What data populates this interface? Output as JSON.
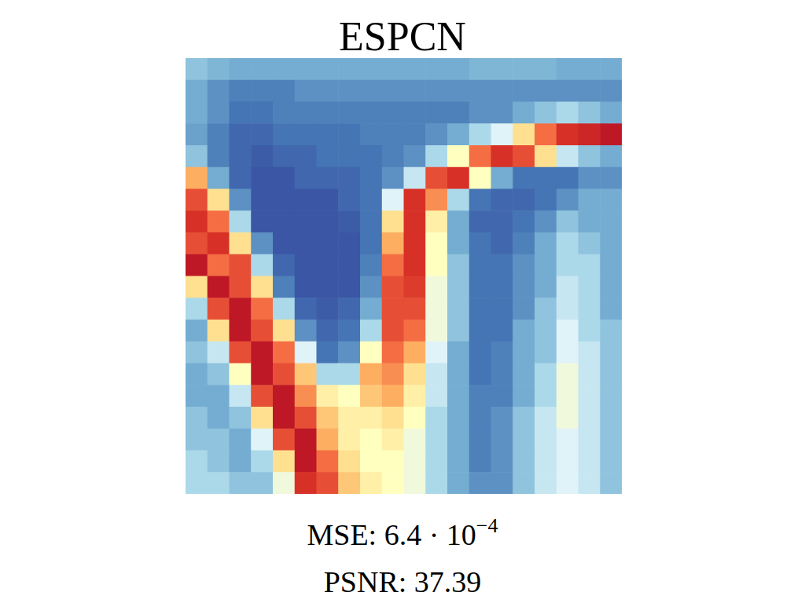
{
  "chart_data": {
    "type": "heatmap",
    "title": "ESPCN",
    "tick_labels": false,
    "grid": false,
    "color_range": [
      0,
      1
    ],
    "annotations": [
      {
        "text": "MSE: 6.4 · 10",
        "superscript": "−4"
      },
      {
        "text": "PSNR: 37.39"
      }
    ],
    "cells": [
      [
        0.25,
        0.22,
        0.2,
        0.2,
        0.2,
        0.2,
        0.2,
        0.2,
        0.2,
        0.2,
        0.2,
        0.2,
        0.2,
        0.22,
        0.22,
        0.22,
        0.22,
        0.2,
        0.2,
        0.2
      ],
      [
        0.2,
        0.15,
        0.12,
        0.12,
        0.12,
        0.15,
        0.15,
        0.15,
        0.15,
        0.15,
        0.15,
        0.15,
        0.15,
        0.15,
        0.15,
        0.15,
        0.15,
        0.15,
        0.15,
        0.15
      ],
      [
        0.2,
        0.15,
        0.1,
        0.1,
        0.12,
        0.12,
        0.12,
        0.12,
        0.12,
        0.12,
        0.12,
        0.12,
        0.12,
        0.15,
        0.15,
        0.2,
        0.25,
        0.3,
        0.25,
        0.2
      ],
      [
        0.18,
        0.12,
        0.08,
        0.08,
        0.1,
        0.1,
        0.1,
        0.1,
        0.12,
        0.12,
        0.12,
        0.15,
        0.2,
        0.3,
        0.4,
        0.6,
        0.8,
        0.9,
        0.92,
        0.95
      ],
      [
        0.25,
        0.12,
        0.08,
        0.06,
        0.08,
        0.08,
        0.1,
        0.1,
        0.1,
        0.12,
        0.15,
        0.3,
        0.5,
        0.8,
        0.9,
        0.85,
        0.6,
        0.35,
        0.25,
        0.2
      ],
      [
        0.7,
        0.2,
        0.08,
        0.05,
        0.05,
        0.08,
        0.08,
        0.08,
        0.1,
        0.15,
        0.35,
        0.85,
        0.9,
        0.5,
        0.2,
        0.1,
        0.1,
        0.1,
        0.15,
        0.15
      ],
      [
        0.85,
        0.6,
        0.15,
        0.05,
        0.05,
        0.05,
        0.05,
        0.08,
        0.1,
        0.4,
        0.9,
        0.75,
        0.3,
        0.1,
        0.08,
        0.08,
        0.1,
        0.15,
        0.2,
        0.2
      ],
      [
        0.9,
        0.8,
        0.3,
        0.05,
        0.05,
        0.05,
        0.05,
        0.06,
        0.1,
        0.6,
        0.9,
        0.55,
        0.2,
        0.08,
        0.08,
        0.1,
        0.15,
        0.25,
        0.2,
        0.2
      ],
      [
        0.85,
        0.9,
        0.6,
        0.15,
        0.05,
        0.05,
        0.05,
        0.05,
        0.1,
        0.7,
        0.9,
        0.5,
        0.2,
        0.1,
        0.08,
        0.12,
        0.2,
        0.3,
        0.25,
        0.2
      ],
      [
        0.95,
        0.8,
        0.85,
        0.3,
        0.08,
        0.05,
        0.05,
        0.05,
        0.12,
        0.8,
        0.9,
        0.5,
        0.25,
        0.1,
        0.1,
        0.15,
        0.2,
        0.3,
        0.3,
        0.2
      ],
      [
        0.6,
        0.95,
        0.85,
        0.6,
        0.12,
        0.05,
        0.05,
        0.05,
        0.15,
        0.85,
        0.88,
        0.45,
        0.25,
        0.1,
        0.1,
        0.15,
        0.2,
        0.35,
        0.3,
        0.2
      ],
      [
        0.3,
        0.85,
        0.95,
        0.8,
        0.3,
        0.08,
        0.06,
        0.08,
        0.2,
        0.85,
        0.85,
        0.45,
        0.25,
        0.1,
        0.1,
        0.15,
        0.25,
        0.35,
        0.3,
        0.2
      ],
      [
        0.2,
        0.6,
        0.95,
        0.85,
        0.6,
        0.15,
        0.08,
        0.1,
        0.3,
        0.85,
        0.8,
        0.45,
        0.25,
        0.1,
        0.1,
        0.2,
        0.25,
        0.4,
        0.3,
        0.25
      ],
      [
        0.25,
        0.35,
        0.85,
        0.95,
        0.8,
        0.4,
        0.1,
        0.15,
        0.5,
        0.8,
        0.7,
        0.4,
        0.2,
        0.1,
        0.12,
        0.2,
        0.25,
        0.4,
        0.35,
        0.25
      ],
      [
        0.2,
        0.25,
        0.5,
        0.95,
        0.85,
        0.65,
        0.3,
        0.3,
        0.7,
        0.75,
        0.6,
        0.35,
        0.2,
        0.1,
        0.12,
        0.2,
        0.3,
        0.45,
        0.35,
        0.25
      ],
      [
        0.2,
        0.2,
        0.35,
        0.85,
        0.95,
        0.75,
        0.55,
        0.5,
        0.65,
        0.7,
        0.55,
        0.35,
        0.2,
        0.12,
        0.12,
        0.2,
        0.3,
        0.45,
        0.35,
        0.25
      ],
      [
        0.25,
        0.2,
        0.25,
        0.6,
        0.95,
        0.85,
        0.65,
        0.55,
        0.55,
        0.6,
        0.5,
        0.3,
        0.2,
        0.12,
        0.15,
        0.25,
        0.35,
        0.45,
        0.35,
        0.25
      ],
      [
        0.25,
        0.25,
        0.2,
        0.4,
        0.85,
        0.95,
        0.7,
        0.55,
        0.5,
        0.55,
        0.45,
        0.3,
        0.2,
        0.12,
        0.15,
        0.25,
        0.35,
        0.4,
        0.35,
        0.25
      ],
      [
        0.3,
        0.25,
        0.2,
        0.3,
        0.6,
        0.95,
        0.8,
        0.6,
        0.5,
        0.5,
        0.45,
        0.3,
        0.2,
        0.12,
        0.15,
        0.25,
        0.35,
        0.4,
        0.35,
        0.25
      ],
      [
        0.3,
        0.3,
        0.25,
        0.25,
        0.45,
        0.9,
        0.85,
        0.65,
        0.55,
        0.5,
        0.45,
        0.3,
        0.2,
        0.15,
        0.15,
        0.25,
        0.35,
        0.4,
        0.35,
        0.25
      ]
    ]
  }
}
